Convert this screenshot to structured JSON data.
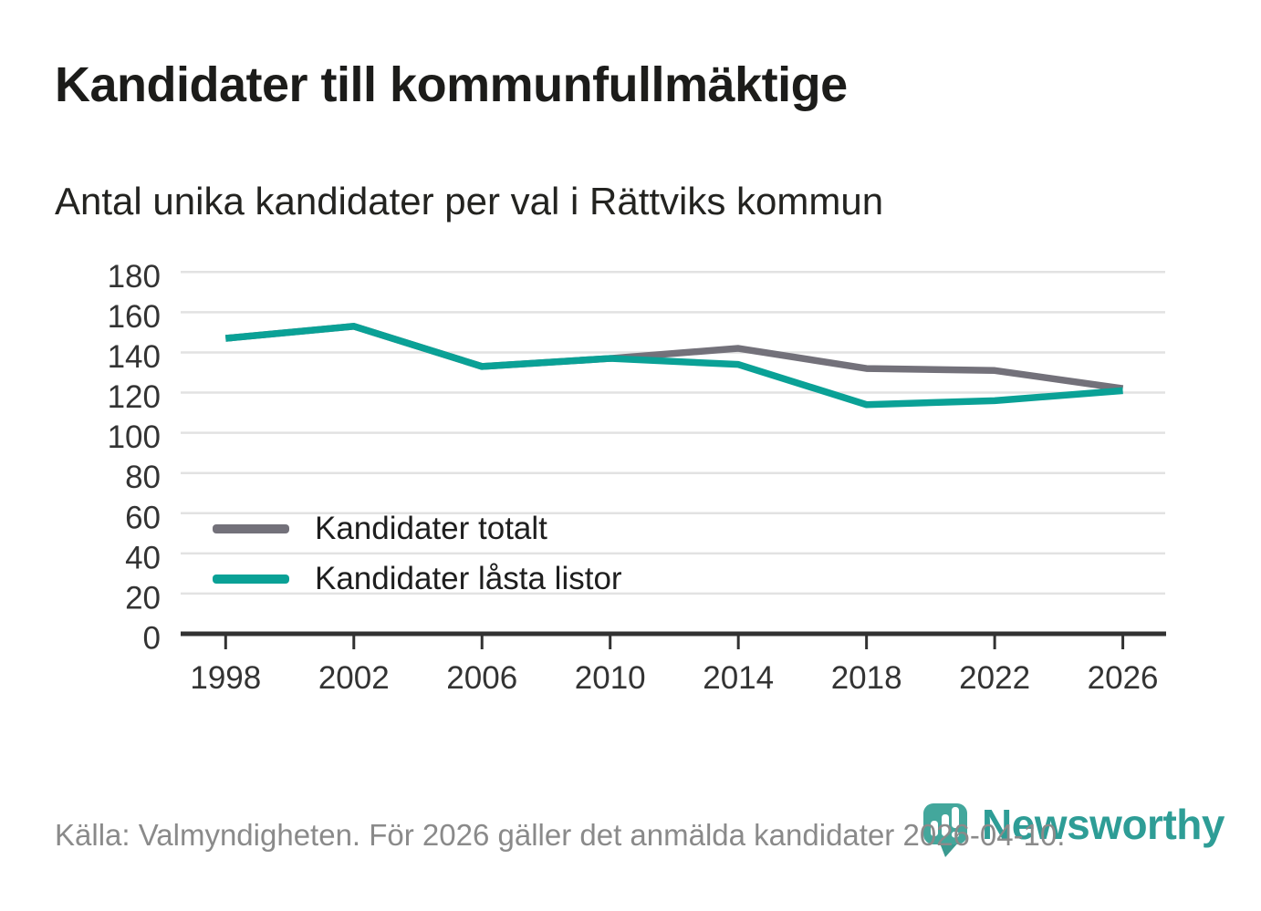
{
  "header": {
    "title": "Kandidater till kommunfullmäktige",
    "subtitle": "Antal unika kandidater per val i Rättviks kommun"
  },
  "chart_data": {
    "type": "line",
    "x": [
      1998,
      2002,
      2006,
      2010,
      2014,
      2018,
      2022,
      2026
    ],
    "series": [
      {
        "name": "Kandidater totalt",
        "color": "#73717a",
        "values": [
          147,
          153,
          133,
          137,
          142,
          132,
          131,
          122
        ]
      },
      {
        "name": "Kandidater låsta listor",
        "color": "#0aa196",
        "values": [
          147,
          153,
          133,
          137,
          134,
          114,
          116,
          121
        ]
      }
    ],
    "title": "Kandidater till kommunfullmäktige",
    "subtitle": "Antal unika kandidater per val i Rättviks kommun",
    "xlabel": "",
    "ylabel": "",
    "ylim": [
      0,
      180
    ],
    "ytick_step": 20,
    "grid": "horizontal",
    "legend_position": "inside-lower-left",
    "colors": {
      "gridline": "#e2e2e2",
      "axis": "#323232",
      "tick_label": "#333333"
    }
  },
  "footer": {
    "source": "Källa: Valmyndigheten. För 2026 gäller det anmälda kandidater 2026-04-10."
  },
  "logo": {
    "text": "Newsworthy",
    "mark_color": "#43a79c",
    "tail_color": "#3a9a90",
    "text_color": "#2e9d96"
  }
}
